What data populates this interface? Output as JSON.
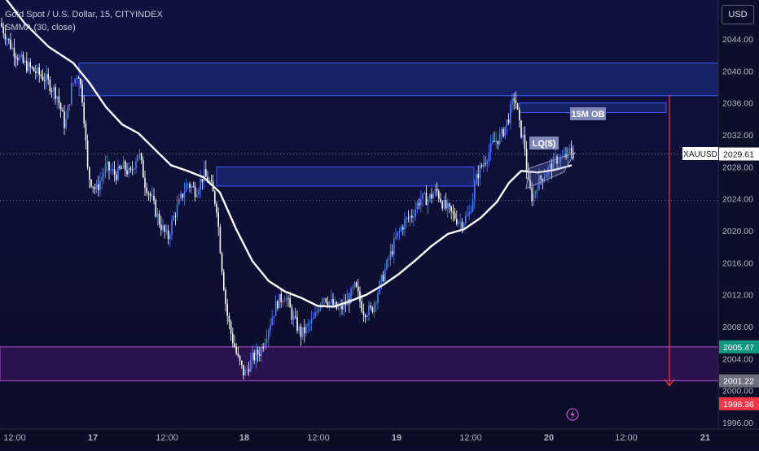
{
  "legend": {
    "line1": "Gold Spot / U.S. Dollar, 15, CITYINDEX",
    "line2": "SMMA (30, close)"
  },
  "currency_button": "USD",
  "symbol_tag": "XAUUSD",
  "annotations": {
    "ob_label": "15M OB",
    "lq_label": "LQ($)"
  },
  "chart_data": {
    "type": "candlestick",
    "symbol": "XAUUSD",
    "timeframe": "15",
    "y_range": [
      1996,
      2048
    ],
    "y_ticks": [
      1996,
      2000,
      2004,
      2008,
      2012,
      2016,
      2020,
      2024,
      2028,
      2032,
      2036,
      2040,
      2044
    ],
    "x_ticks": [
      "12:00",
      "17",
      "12:00",
      "18",
      "12:00",
      "19",
      "12:00",
      "20",
      "12:00",
      "21"
    ],
    "price_labels": [
      {
        "text": "2029.61",
        "value": 2029.61,
        "kind": "last",
        "color": "#ffffff"
      },
      {
        "text": "2005.47",
        "value": 2005.47,
        "kind": "zone-top",
        "color": "#089981"
      },
      {
        "text": "2001.22",
        "value": 2001.22,
        "kind": "zone-bottom",
        "color": "#6d6f7e"
      },
      {
        "text": "1998.36",
        "value": 1998.36,
        "kind": "target",
        "color": "#f23645"
      }
    ],
    "price_path": [
      [
        0,
        2046
      ],
      [
        14,
        2043
      ],
      [
        28,
        2041
      ],
      [
        42,
        2040
      ],
      [
        56,
        2039
      ],
      [
        70,
        2037
      ],
      [
        80,
        2033
      ],
      [
        88,
        2038
      ],
      [
        96,
        2040
      ],
      [
        102,
        2036
      ],
      [
        108,
        2027
      ],
      [
        118,
        2025
      ],
      [
        130,
        2028
      ],
      [
        142,
        2027
      ],
      [
        152,
        2028
      ],
      [
        160,
        2027
      ],
      [
        170,
        2030
      ],
      [
        178,
        2026
      ],
      [
        186,
        2024
      ],
      [
        196,
        2021
      ],
      [
        206,
        2019
      ],
      [
        214,
        2022
      ],
      [
        222,
        2024
      ],
      [
        230,
        2026
      ],
      [
        240,
        2025
      ],
      [
        250,
        2027
      ],
      [
        258,
        2026
      ],
      [
        266,
        2023
      ],
      [
        272,
        2016
      ],
      [
        278,
        2010
      ],
      [
        284,
        2007
      ],
      [
        292,
        2004
      ],
      [
        300,
        2002
      ],
      [
        310,
        2004
      ],
      [
        320,
        2005
      ],
      [
        330,
        2008
      ],
      [
        340,
        2011
      ],
      [
        350,
        2012
      ],
      [
        360,
        2009
      ],
      [
        370,
        2007
      ],
      [
        378,
        2008
      ],
      [
        386,
        2009
      ],
      [
        396,
        2012
      ],
      [
        406,
        2011
      ],
      [
        416,
        2010
      ],
      [
        426,
        2011
      ],
      [
        436,
        2013
      ],
      [
        446,
        2010
      ],
      [
        456,
        2010
      ],
      [
        466,
        2013
      ],
      [
        476,
        2016
      ],
      [
        486,
        2019
      ],
      [
        496,
        2021
      ],
      [
        506,
        2022
      ],
      [
        516,
        2024
      ],
      [
        526,
        2024
      ],
      [
        536,
        2025
      ],
      [
        546,
        2023
      ],
      [
        556,
        2022
      ],
      [
        566,
        2021
      ],
      [
        576,
        2022
      ],
      [
        586,
        2027
      ],
      [
        596,
        2029
      ],
      [
        606,
        2031
      ],
      [
        616,
        2032
      ],
      [
        624,
        2034
      ],
      [
        632,
        2037
      ],
      [
        638,
        2033
      ],
      [
        644,
        2031
      ],
      [
        648,
        2026
      ],
      [
        654,
        2024
      ],
      [
        660,
        2026
      ],
      [
        668,
        2027
      ],
      [
        676,
        2028
      ],
      [
        684,
        2029
      ],
      [
        692,
        2029
      ],
      [
        700,
        2030
      ],
      [
        706,
        2029.5
      ]
    ],
    "smma_path": [
      [
        0,
        2050
      ],
      [
        30,
        2046
      ],
      [
        60,
        2043
      ],
      [
        90,
        2041
      ],
      [
        110,
        2038.5
      ],
      [
        130,
        2035.5
      ],
      [
        150,
        2033.3
      ],
      [
        170,
        2032.2
      ],
      [
        190,
        2030.2
      ],
      [
        210,
        2028.2
      ],
      [
        230,
        2027.5
      ],
      [
        250,
        2026.7
      ],
      [
        270,
        2024.8
      ],
      [
        290,
        2020.2
      ],
      [
        310,
        2016.2
      ],
      [
        330,
        2013.7
      ],
      [
        350,
        2012.4
      ],
      [
        370,
        2011.6
      ],
      [
        390,
        2010.6
      ],
      [
        410,
        2010.5
      ],
      [
        430,
        2011.2
      ],
      [
        450,
        2012
      ],
      [
        470,
        2013.2
      ],
      [
        490,
        2014.6
      ],
      [
        510,
        2016.3
      ],
      [
        530,
        2018.1
      ],
      [
        550,
        2019.6
      ],
      [
        570,
        2020.2
      ],
      [
        590,
        2021.6
      ],
      [
        610,
        2023.6
      ],
      [
        625,
        2026
      ],
      [
        640,
        2027.5
      ],
      [
        660,
        2027.3
      ],
      [
        680,
        2027.6
      ],
      [
        702,
        2028.2
      ]
    ],
    "zones": [
      {
        "name": "upper-supply-zone",
        "x1": 97,
        "x2": 882,
        "y1": 2036.9,
        "y2": 2041,
        "color": "#2a3fb0"
      },
      {
        "name": "ob-zone-15m",
        "x1": 638,
        "x2": 818,
        "y1": 2034.8,
        "y2": 2036,
        "color": "#2a3fb0",
        "label": "15M OB"
      },
      {
        "name": "mid-demand-zone",
        "x1": 266,
        "x2": 582,
        "y1": 2025.6,
        "y2": 2028,
        "color": "#2a3fb0"
      },
      {
        "name": "lower-demand-zone",
        "x1": 0,
        "x2": 882,
        "y1": 2001.22,
        "y2": 2005.47,
        "color": "#7b1fa2"
      }
    ],
    "dotted_levels": [
      2029.61,
      2023.8
    ],
    "target_arrow": {
      "x": 822,
      "from": 2037,
      "to": 2001.22,
      "color": "#f23645"
    }
  }
}
